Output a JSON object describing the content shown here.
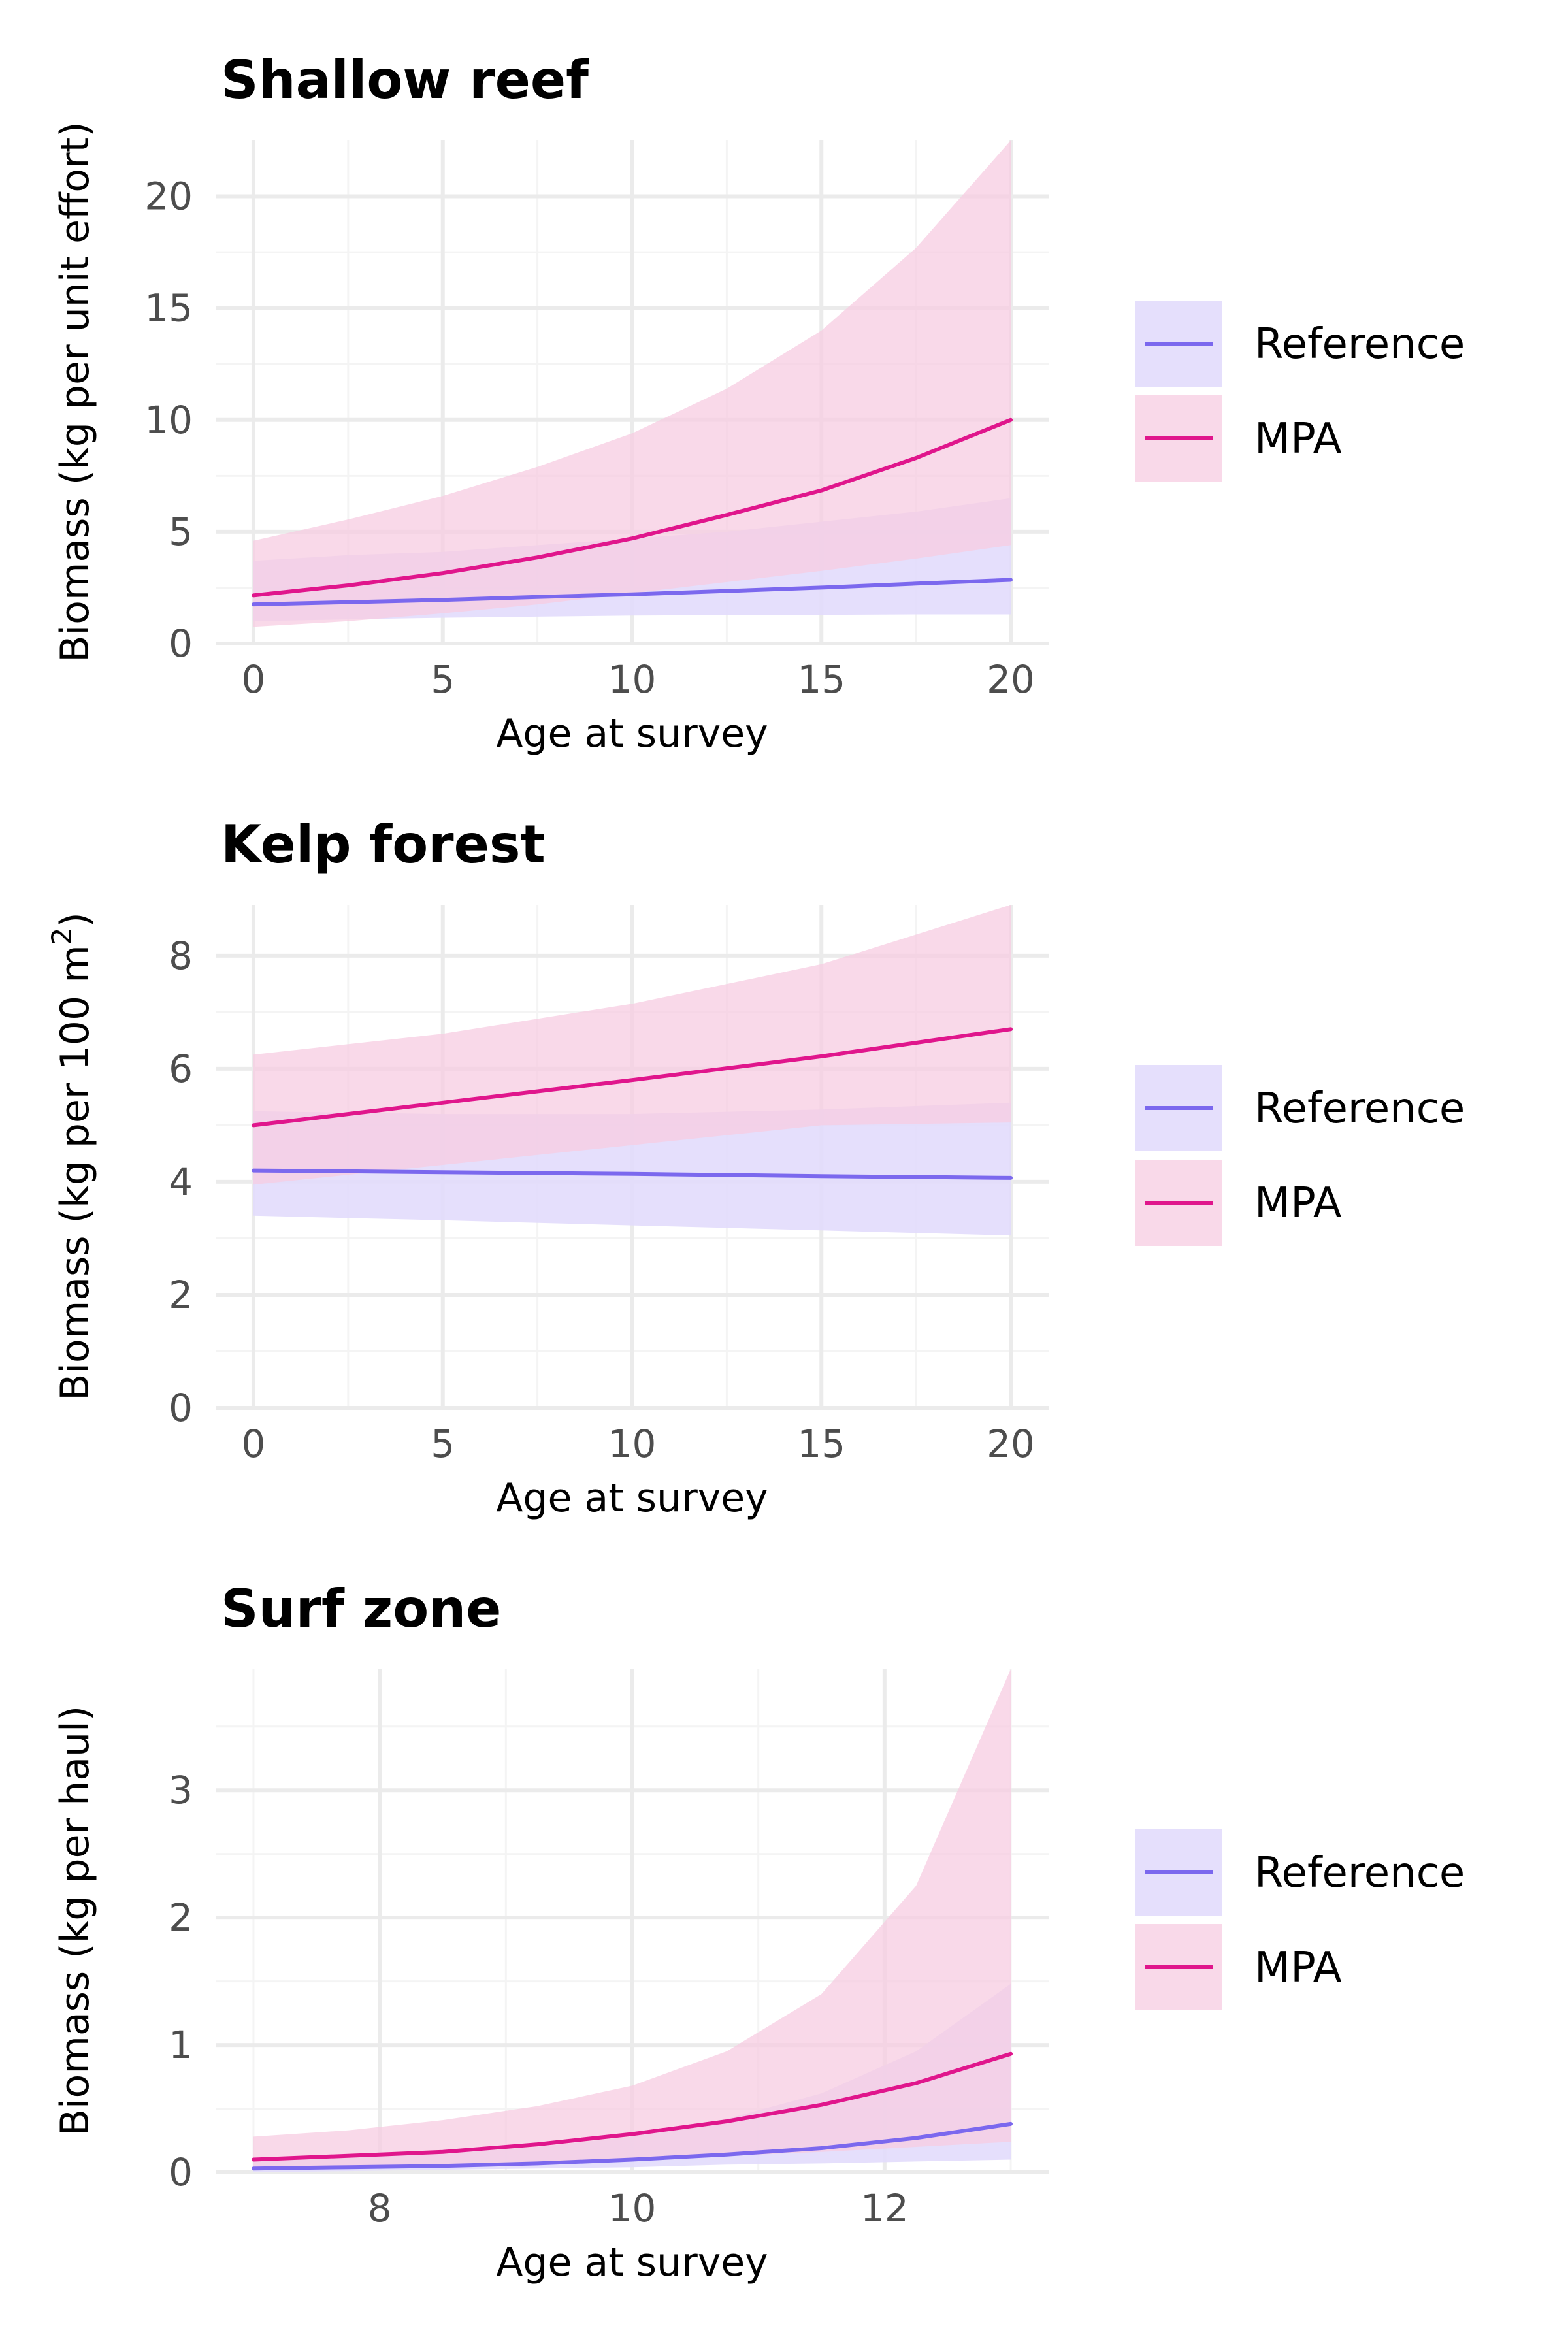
{
  "colors": {
    "reference_line": "#7B68EE",
    "reference_band": "#E2DCFC",
    "mpa_line": "#E0168C",
    "mpa_band": "#F7CCE2",
    "grid_major": "#EBEBEB",
    "grid_minor": "#F4F4F4"
  },
  "chart_data": [
    {
      "type": "line",
      "title": "Shallow reef",
      "xlabel": "Age at survey",
      "ylabel": "Biomass (kg per unit effort)",
      "ylabel_sup": "",
      "xlim": [
        -1,
        21
      ],
      "ylim": [
        0,
        22.5
      ],
      "x_ticks": [
        0,
        5,
        10,
        15,
        20
      ],
      "y_ticks": [
        0,
        5,
        10,
        15,
        20
      ],
      "x_minor": [
        2.5,
        7.5,
        12.5,
        17.5
      ],
      "y_minor": [
        2.5,
        7.5,
        12.5,
        17.5
      ],
      "legend": [
        "Reference",
        "MPA"
      ],
      "legend_position": "right",
      "x": [
        0,
        2.5,
        5,
        7.5,
        10,
        12.5,
        15,
        17.5,
        20
      ],
      "series": [
        {
          "name": "Reference",
          "values": [
            1.75,
            1.85,
            1.95,
            2.08,
            2.2,
            2.35,
            2.5,
            2.68,
            2.85
          ],
          "lower": [
            1.0,
            1.08,
            1.15,
            1.2,
            1.25,
            1.27,
            1.28,
            1.3,
            1.3
          ],
          "upper": [
            3.7,
            3.95,
            4.1,
            4.4,
            4.7,
            5.0,
            5.45,
            5.9,
            6.5
          ]
        },
        {
          "name": "MPA",
          "values": [
            2.15,
            2.6,
            3.15,
            3.85,
            4.7,
            5.75,
            6.85,
            8.3,
            10.0
          ],
          "lower": [
            0.75,
            1.0,
            1.35,
            1.75,
            2.25,
            2.75,
            3.25,
            3.8,
            4.4
          ],
          "upper": [
            4.6,
            5.55,
            6.6,
            7.9,
            9.4,
            11.4,
            14.0,
            17.7,
            22.5
          ]
        }
      ]
    },
    {
      "type": "line",
      "title": "Kelp forest",
      "xlabel": "Age at survey",
      "ylabel": "Biomass (kg per 100 m",
      "ylabel_sup": "2",
      "ylabel_end": ")",
      "xlim": [
        -1,
        21
      ],
      "ylim": [
        0,
        8.9
      ],
      "x_ticks": [
        0,
        5,
        10,
        15,
        20
      ],
      "y_ticks": [
        0,
        2,
        4,
        6,
        8
      ],
      "x_minor": [
        2.5,
        7.5,
        12.5,
        17.5
      ],
      "y_minor": [
        1,
        3,
        5,
        7
      ],
      "legend": [
        "Reference",
        "MPA"
      ],
      "legend_position": "right",
      "x": [
        0,
        5,
        10,
        15,
        20
      ],
      "series": [
        {
          "name": "Reference",
          "values": [
            4.2,
            4.17,
            4.14,
            4.1,
            4.07
          ],
          "lower": [
            3.4,
            3.32,
            3.23,
            3.14,
            3.05
          ],
          "upper": [
            5.25,
            5.2,
            5.2,
            5.28,
            5.4
          ]
        },
        {
          "name": "MPA",
          "values": [
            5.0,
            5.4,
            5.8,
            6.22,
            6.7
          ],
          "lower": [
            3.95,
            4.3,
            4.65,
            5.0,
            5.05
          ],
          "upper": [
            6.25,
            6.62,
            7.15,
            7.85,
            8.9
          ]
        }
      ]
    },
    {
      "type": "line",
      "title": "Surf zone",
      "xlabel": "Age at survey",
      "ylabel": "Biomass (kg per haul)",
      "ylabel_sup": "",
      "xlim": [
        6.7,
        13.3
      ],
      "ylim": [
        0,
        3.95
      ],
      "x_ticks": [
        8,
        10,
        12
      ],
      "y_ticks": [
        0,
        1,
        2,
        3
      ],
      "x_minor": [
        7,
        9,
        11,
        13
      ],
      "y_minor": [
        0.5,
        1.5,
        2.5,
        3.5
      ],
      "legend": [
        "Reference",
        "MPA"
      ],
      "legend_position": "right",
      "x": [
        7,
        7.75,
        8.5,
        9.25,
        10,
        10.75,
        11.5,
        12.25,
        13
      ],
      "series": [
        {
          "name": "Reference",
          "values": [
            0.03,
            0.04,
            0.05,
            0.07,
            0.1,
            0.14,
            0.19,
            0.27,
            0.38
          ],
          "lower": [
            0.0,
            0.01,
            0.02,
            0.03,
            0.04,
            0.06,
            0.07,
            0.085,
            0.1
          ],
          "upper": [
            0.1,
            0.12,
            0.15,
            0.2,
            0.28,
            0.42,
            0.62,
            0.95,
            1.48
          ]
        },
        {
          "name": "MPA",
          "values": [
            0.1,
            0.13,
            0.16,
            0.22,
            0.3,
            0.4,
            0.53,
            0.7,
            0.93
          ],
          "lower": [
            0.02,
            0.03,
            0.05,
            0.07,
            0.1,
            0.13,
            0.16,
            0.2,
            0.24
          ],
          "upper": [
            0.28,
            0.33,
            0.41,
            0.52,
            0.68,
            0.95,
            1.4,
            2.25,
            3.95
          ]
        }
      ]
    }
  ]
}
